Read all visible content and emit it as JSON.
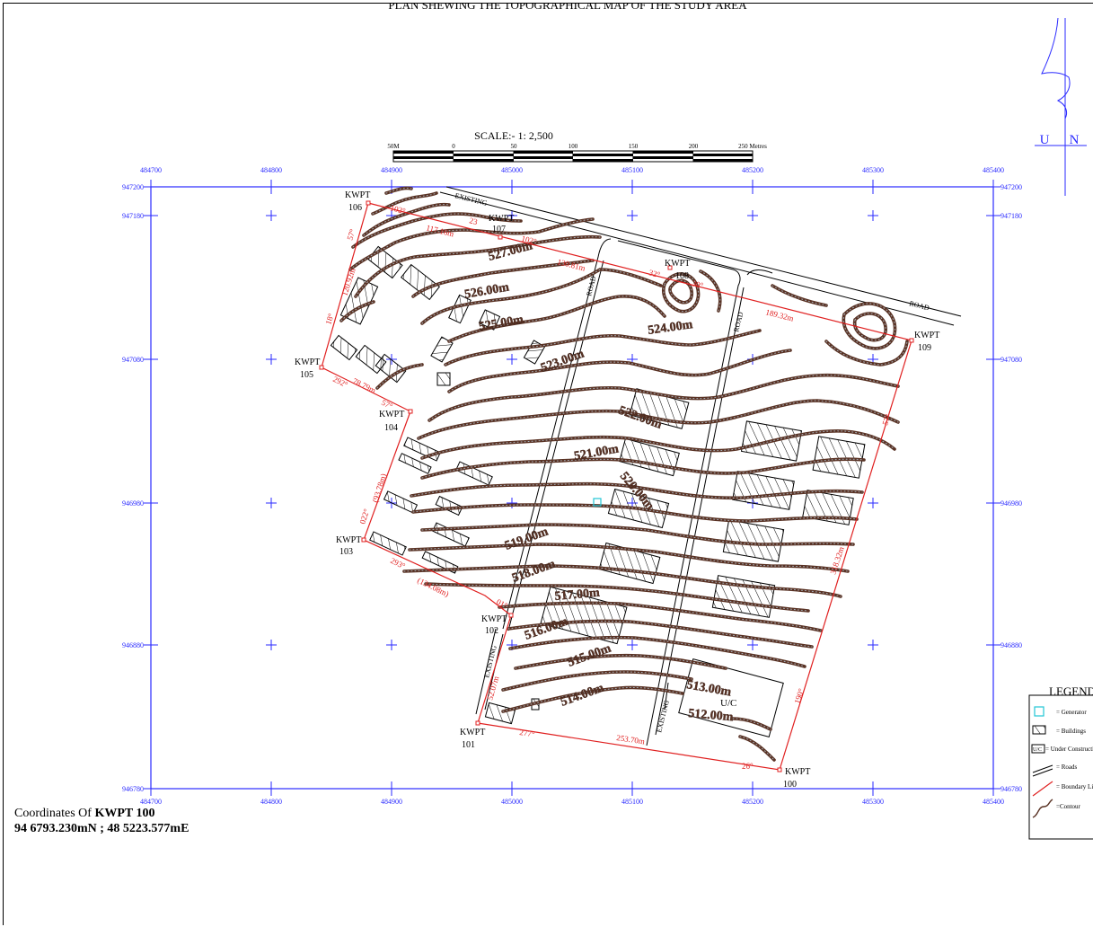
{
  "title": "PLAN SHEWING THE TOPOGRAPHICAL MAP OF THE STUDY AREA",
  "scale": {
    "label": "SCALE:- 1: 2,500",
    "ticks": [
      "50M",
      "0",
      "50",
      "100",
      "150",
      "200",
      "250 Metres"
    ]
  },
  "north": {
    "u_label": "U",
    "n_label": "N"
  },
  "grid": {
    "eastings": [
      "484700",
      "484800",
      "484900",
      "485000",
      "485100",
      "485200",
      "485300",
      "485400"
    ],
    "northings": [
      "947200",
      "947180",
      "947080",
      "946980",
      "946880",
      "946780"
    ]
  },
  "roads": {
    "existing_label": "EXISTING",
    "road_label": "ROAD"
  },
  "contours": [
    "527.00m",
    "526.00m",
    "525.00m",
    "524.00m",
    "523.00m",
    "522.00m",
    "521.00m",
    "520.00m",
    "519.00m",
    "518.00m",
    "517.00m",
    "516.00m",
    "515.00m",
    "514.00m",
    "513.00m",
    "512.00m"
  ],
  "beacons": [
    {
      "id": "KWPT",
      "num": "100"
    },
    {
      "id": "KWPT",
      "num": "101"
    },
    {
      "id": "KWPT",
      "num": "102"
    },
    {
      "id": "KWPT",
      "num": "103"
    },
    {
      "id": "KWPT",
      "num": "104"
    },
    {
      "id": "KWPT",
      "num": "105"
    },
    {
      "id": "KWPT",
      "num": "106"
    },
    {
      "id": "KWPT",
      "num": "107"
    },
    {
      "id": "KWPT",
      "num": "108"
    },
    {
      "id": "KWPT",
      "num": "109"
    }
  ],
  "boundary_labels": {
    "b1": "102°",
    "b2": "117.16m",
    "b3": "102°",
    "b4": "130.81m",
    "b5": "32°",
    "b6": "189.32m",
    "b7": "57°",
    "b8": "318.32m",
    "b9": "26°",
    "b10": "253.70m",
    "b11": "277°",
    "b12": "52.07m",
    "b13": "01°",
    "b14": "293°",
    "b15": "(134.08m)",
    "b16": "(93.78m)",
    "b17": "022°",
    "b18": "57°",
    "b19": "78.79m",
    "b20": "292°",
    "b21": "18°",
    "b22": "120.92m",
    "b23": "57°",
    "b24": "23",
    "b25": "30°",
    "b26": "190°"
  },
  "uc_label": "U/C",
  "legend": {
    "title": "LEGEND",
    "items": [
      {
        "label": "= Generator"
      },
      {
        "label": "= Buildings"
      },
      {
        "label": "= Under Construction"
      },
      {
        "label": "= Roads"
      },
      {
        "label": "= Boundary Line"
      },
      {
        "label": "=Contour"
      }
    ]
  },
  "coordinates": {
    "prefix": "Coordinates Of",
    "point": "KWPT 100",
    "value": "94 6793.230mN  ;  48 5223.577mE"
  },
  "colors": {
    "grid": "#2a2aff",
    "boundary": "#e02020",
    "contour": "#5a3325",
    "contour_dot": "#a8b0b8",
    "generator": "#22c6d6"
  }
}
